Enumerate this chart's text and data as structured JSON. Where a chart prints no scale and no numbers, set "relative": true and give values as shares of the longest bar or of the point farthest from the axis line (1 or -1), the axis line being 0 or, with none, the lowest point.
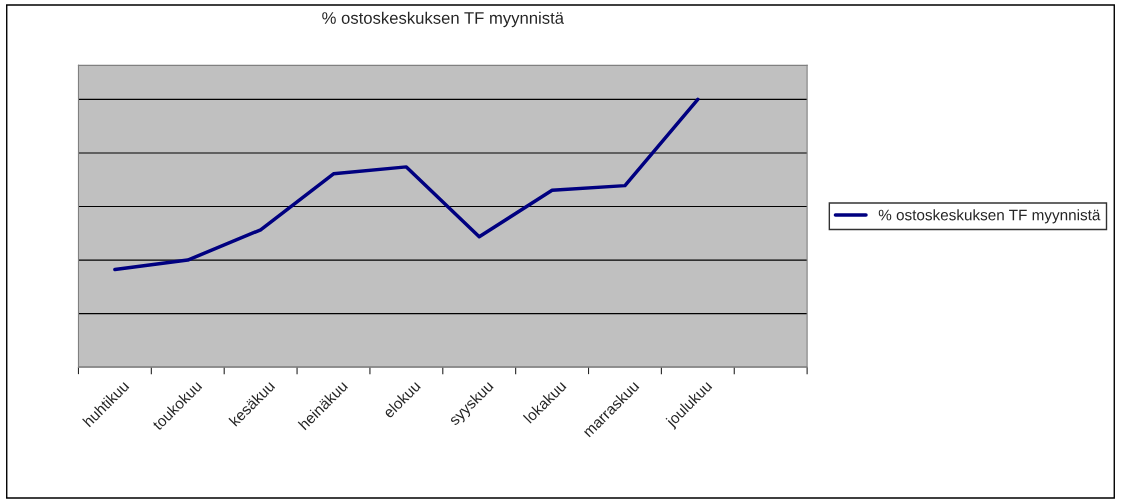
{
  "chart_data": {
    "type": "line",
    "title": "% ostoskeskuksen TF myynnistä",
    "relative": true,
    "categories": [
      "huhtikuu",
      "toukokuu",
      "kesäkuu",
      "heinäkuu",
      "elokuu",
      "syyskuu",
      "lokakuu",
      "marraskuu",
      "joulukuu",
      null
    ],
    "series": [
      {
        "name": "% ostoskeskuksen TF myynnistä",
        "color": "#000080",
        "values": [
          0.365,
          0.4,
          0.513,
          0.722,
          0.748,
          0.487,
          0.661,
          0.678,
          1.0,
          null
        ]
      }
    ],
    "grid": "y",
    "legend": "right",
    "tick_labels": "x",
    "line_style": "solid"
  }
}
